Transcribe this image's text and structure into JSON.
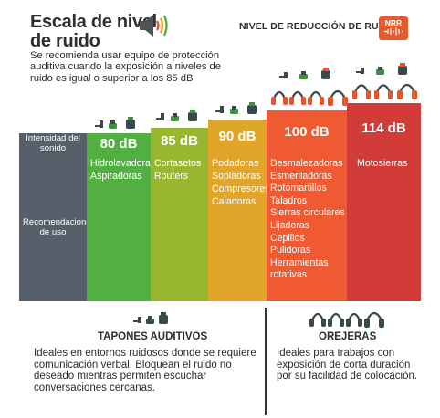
{
  "header": {
    "title_line1": "Escala de nivel",
    "title_line2": "de ruido",
    "subtitle": "Se recomienda usar equipo de protección auditiva cuando la exposición a niveles de ruido es igual o superior a los 85 dB",
    "nrr_label": "NIVEL DE REDUCCIÓN DE RUIDO",
    "nrr_badge": "NRR"
  },
  "rows": {
    "intensity_label": "Intensidad del sonido",
    "recommendations_label": "Recomendaciones de uso"
  },
  "levels": [
    {
      "db": "80 dB",
      "color": "#52b043",
      "items": [
        "Hidrolavadoras",
        "Aspiradoras"
      ]
    },
    {
      "db": "85 dB",
      "color": "#98b62e",
      "items": [
        "Cortasetos",
        "Routers"
      ]
    },
    {
      "db": "90 dB",
      "color": "#e1a52a",
      "items": [
        "Podadoras",
        "Sopladoras",
        "Compresores",
        "Caladoras"
      ]
    },
    {
      "db": "100 dB",
      "color": "#ef5a32",
      "items": [
        "Desmalezadoras",
        "Esmeriladoras",
        "Rotomartillos",
        "Taladros",
        "Sierras circulares",
        "Lijadoras",
        "Cepillos",
        "Pulidoras",
        "Herramientas rotativas"
      ]
    },
    {
      "db": "114 dB",
      "color": "#d13b38",
      "items": [
        "Motosierras"
      ]
    }
  ],
  "colors": {
    "label_column": "#56606b",
    "earplug_dark": "#3a4a4c",
    "earplug_green": "#3f8f3c",
    "earmuff_red": "#e9532d",
    "text_dark": "#2f2f2f"
  },
  "bottom": {
    "earplugs": {
      "title": "TAPONES AUDITIVOS",
      "text": "Ideales en entornos ruidosos donde se requiere comunicación verbal. Bloquean el ruido no deseado mientras permiten escuchar conversaciones cercanas."
    },
    "earmuffs": {
      "title": "OREJERAS",
      "text": "Ideales para trabajos con exposición de corta duración por su facilidad de colocación."
    }
  }
}
